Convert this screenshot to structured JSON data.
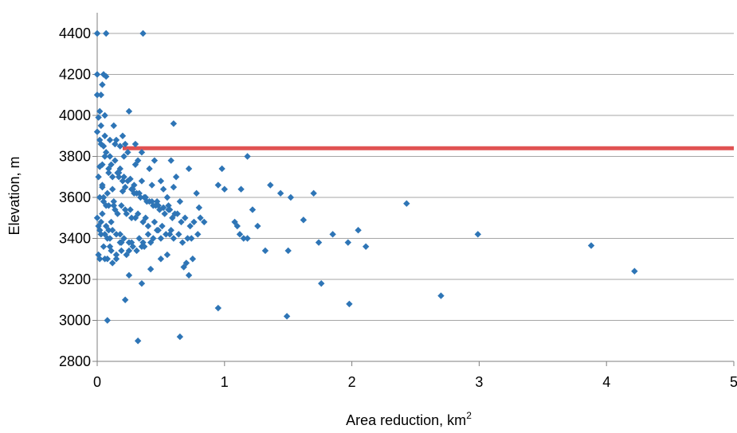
{
  "chart_data": {
    "type": "scatter",
    "title": "",
    "xlabel": "Area reduction, km",
    "xlabel_superscript": "2",
    "ylabel": "Elevation, m",
    "xlim": [
      0,
      5
    ],
    "ylim": [
      2800,
      4400
    ],
    "xticks": [
      0,
      1,
      2,
      3,
      4,
      5
    ],
    "yticks": [
      2800,
      3000,
      3200,
      3400,
      3600,
      3800,
      4000,
      4200,
      4400
    ],
    "grid": "horizontal",
    "colors": {
      "points": "#2E75B6",
      "reference_line": "#E05252",
      "grid": "#A6A6A6"
    },
    "reference_line": {
      "y": 3840,
      "x_from": 0.2,
      "x_to": 5
    },
    "series": [
      {
        "x": [
          0.0,
          0.07,
          0.36,
          0.0,
          0.05,
          0.07,
          0.04,
          0.03,
          0.0,
          0.06,
          0.02,
          0.01,
          0.13,
          0.25,
          0.6,
          0.2,
          0.15,
          0.18,
          0.22,
          0.3,
          0.35,
          0.58,
          0.45,
          0.62,
          0.5,
          0.72,
          0.78,
          0.55,
          0.6,
          0.65,
          0.8,
          0.98,
          0.95,
          1.0,
          1.18,
          1.13,
          1.36,
          1.44,
          1.52,
          1.7,
          1.22,
          1.26,
          1.62,
          2.43,
          1.08,
          1.1,
          1.12,
          1.15,
          1.18,
          1.32,
          1.5,
          1.74,
          1.85,
          1.97,
          2.05,
          2.11,
          2.99,
          3.88,
          4.22,
          0.95,
          1.49,
          1.76,
          1.98,
          2.7,
          0.08,
          0.32,
          0.65,
          0.22,
          0.35,
          0.25,
          0.42,
          0.5,
          0.55,
          0.68,
          0.72,
          0.75,
          0.7,
          0.0,
          0.02,
          0.05,
          0.1,
          0.04,
          0.09,
          0.12,
          0.17,
          0.2,
          0.22,
          0.27,
          0.31,
          0.37,
          0.41,
          0.46,
          0.52,
          0.57,
          0.63,
          0.07,
          0.14,
          0.18,
          0.21,
          0.29,
          0.33,
          0.39,
          0.44,
          0.49,
          0.53,
          0.59,
          0.66,
          0.73,
          0.81,
          0.03,
          0.06,
          0.11,
          0.16,
          0.24,
          0.28,
          0.34,
          0.43,
          0.48,
          0.56,
          0.61,
          0.69,
          0.76,
          0.84,
          0.01,
          0.04,
          0.08,
          0.13,
          0.19,
          0.26,
          0.32,
          0.38,
          0.45,
          0.51,
          0.58,
          0.64,
          0.71,
          0.79,
          0.02,
          0.05,
          0.09,
          0.14,
          0.23,
          0.3,
          0.36,
          0.4,
          0.47,
          0.54,
          0.6,
          0.67,
          0.74,
          0.0,
          0.03,
          0.07,
          0.12,
          0.15,
          0.21,
          0.27,
          0.35,
          0.42,
          0.5,
          0.57,
          0.02,
          0.06,
          0.1,
          0.18,
          0.25,
          0.33,
          0.4,
          0.48,
          0.05,
          0.11,
          0.19,
          0.28,
          0.36,
          0.44,
          0.01,
          0.08,
          0.15,
          0.23,
          0.31,
          0.04,
          0.12,
          0.2,
          0.29,
          0.38,
          0.47,
          0.56,
          0.02,
          0.09,
          0.17,
          0.26,
          0.35,
          0.43,
          0.52,
          0.06,
          0.14,
          0.24,
          0.32,
          0.41,
          0.03,
          0.1,
          0.21,
          0.3,
          0.07,
          0.16,
          0.27,
          0.05,
          0.13,
          0.22,
          0.01,
          0.09,
          0.18,
          0.04,
          0.11,
          0.08,
          0.02,
          0.06,
          0.15,
          0.25,
          0.37,
          0.12,
          0.19,
          0.03,
          0.1
        ],
        "y": [
          4400,
          4400,
          4400,
          4200,
          4200,
          4190,
          4150,
          4100,
          4100,
          4000,
          4020,
          3990,
          3950,
          4020,
          3960,
          3900,
          3880,
          3850,
          3860,
          3860,
          3820,
          3780,
          3780,
          3700,
          3680,
          3740,
          3620,
          3600,
          3650,
          3580,
          3550,
          3740,
          3660,
          3640,
          3800,
          3640,
          3660,
          3620,
          3600,
          3620,
          3540,
          3460,
          3490,
          3570,
          3480,
          3460,
          3420,
          3400,
          3400,
          3340,
          3340,
          3380,
          3420,
          3380,
          3440,
          3360,
          3420,
          3365,
          3240,
          3060,
          3020,
          3180,
          3080,
          3120,
          3000,
          2900,
          2920,
          3100,
          3180,
          3220,
          3250,
          3300,
          3320,
          3260,
          3220,
          3300,
          3280,
          3920,
          3880,
          3850,
          3800,
          3760,
          3740,
          3700,
          3720,
          3680,
          3650,
          3640,
          3620,
          3600,
          3580,
          3560,
          3550,
          3540,
          3520,
          3820,
          3780,
          3740,
          3700,
          3660,
          3620,
          3580,
          3560,
          3540,
          3520,
          3500,
          3480,
          3460,
          3500,
          3860,
          3800,
          3760,
          3720,
          3680,
          3640,
          3600,
          3580,
          3560,
          3540,
          3520,
          3500,
          3480,
          3480,
          3700,
          3660,
          3620,
          3580,
          3560,
          3540,
          3520,
          3500,
          3480,
          3460,
          3440,
          3420,
          3400,
          3420,
          3600,
          3580,
          3560,
          3540,
          3520,
          3500,
          3480,
          3460,
          3440,
          3420,
          3400,
          3380,
          3400,
          3500,
          3480,
          3460,
          3440,
          3420,
          3400,
          3380,
          3360,
          3380,
          3400,
          3420,
          3440,
          3420,
          3400,
          3380,
          3380,
          3400,
          3420,
          3440,
          3360,
          3340,
          3340,
          3360,
          3380,
          3400,
          3320,
          3300,
          3300,
          3320,
          3340,
          3650,
          3640,
          3630,
          3620,
          3600,
          3580,
          3560,
          3750,
          3720,
          3700,
          3690,
          3680,
          3660,
          3640,
          3900,
          3860,
          3820,
          3780,
          3740,
          3950,
          3880,
          3800,
          3760,
          3560,
          3520,
          3500,
          3600,
          3560,
          3540,
          3460,
          3440,
          3420,
          3520,
          3480,
          3400,
          3300,
          3300,
          3320,
          3340,
          3360,
          3280,
          3380,
          3420,
          3360
        ]
      }
    ]
  }
}
